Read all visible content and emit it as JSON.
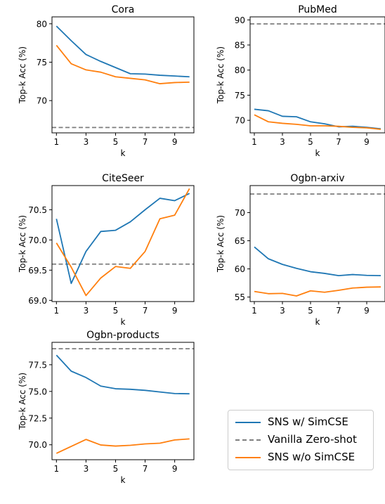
{
  "chart_data": [
    {
      "type": "line",
      "title": "Cora",
      "xlabel": "k",
      "ylabel": "Top-k Acc (%)",
      "x": [
        1,
        2,
        3,
        4,
        5,
        6,
        7,
        8,
        9,
        10
      ],
      "xlim": [
        0.7,
        10.3
      ],
      "ylim": [
        65.8,
        80.9
      ],
      "xticks": [
        1,
        3,
        5,
        7,
        9
      ],
      "yticks": [
        70,
        75,
        80
      ],
      "ytick_labels": [
        "70",
        "75",
        "80"
      ],
      "series": [
        {
          "name": "SNS w/ SimCSE",
          "values": [
            79.7,
            77.8,
            76.0,
            75.1,
            74.3,
            73.5,
            73.45,
            73.3,
            73.2,
            73.1
          ]
        },
        {
          "name": "SNS w/o SimCSE",
          "values": [
            77.2,
            74.8,
            74.0,
            73.7,
            73.1,
            72.9,
            72.7,
            72.2,
            72.35,
            72.4
          ]
        }
      ],
      "reference": {
        "name": "Vanilla Zero-shot",
        "value": 66.5
      }
    },
    {
      "type": "line",
      "title": "PubMed",
      "xlabel": "k",
      "ylabel": "Top-k Acc (%)",
      "x": [
        1,
        2,
        3,
        4,
        5,
        6,
        7,
        8,
        9,
        10
      ],
      "xlim": [
        0.7,
        10.3
      ],
      "ylim": [
        67.5,
        90.6
      ],
      "xticks": [
        1,
        3,
        5,
        7,
        9
      ],
      "yticks": [
        70,
        75,
        80,
        85,
        90
      ],
      "ytick_labels": [
        "70",
        "75",
        "80",
        "85",
        "90"
      ],
      "series": [
        {
          "name": "SNS w/ SimCSE",
          "values": [
            72.2,
            71.9,
            70.8,
            70.7,
            69.7,
            69.3,
            68.7,
            68.8,
            68.6,
            68.3
          ]
        },
        {
          "name": "SNS w/o SimCSE",
          "values": [
            71.1,
            69.7,
            69.4,
            69.2,
            68.9,
            68.9,
            68.8,
            68.6,
            68.5,
            68.2
          ]
        }
      ],
      "reference": {
        "name": "Vanilla Zero-shot",
        "value": 89.2
      }
    },
    {
      "type": "line",
      "title": "CiteSeer",
      "xlabel": "k",
      "ylabel": "Top-k Acc (%)",
      "x": [
        1,
        2,
        3,
        4,
        5,
        6,
        7,
        8,
        9,
        10
      ],
      "xlim": [
        0.7,
        10.3
      ],
      "ylim": [
        68.98,
        70.9
      ],
      "xticks": [
        1,
        3,
        5,
        7,
        9
      ],
      "yticks": [
        69.0,
        69.5,
        70.0,
        70.5
      ],
      "ytick_labels": [
        "69.0",
        "69.5",
        "70.0",
        "70.5"
      ],
      "series": [
        {
          "name": "SNS w/ SimCSE",
          "values": [
            70.35,
            69.28,
            69.81,
            70.14,
            70.16,
            70.3,
            70.5,
            70.69,
            70.65,
            70.77
          ]
        },
        {
          "name": "SNS w/o SimCSE",
          "values": [
            69.95,
            69.55,
            69.08,
            69.37,
            69.56,
            69.53,
            69.81,
            70.35,
            70.41,
            70.85
          ]
        }
      ],
      "reference": {
        "name": "Vanilla Zero-shot",
        "value": 69.6
      }
    },
    {
      "type": "line",
      "title": "Ogbn-arxiv",
      "xlabel": "k",
      "ylabel": "Top-k Acc (%)",
      "x": [
        1,
        2,
        3,
        4,
        5,
        6,
        7,
        8,
        9,
        10
      ],
      "xlim": [
        0.7,
        10.3
      ],
      "ylim": [
        54.2,
        74.8
      ],
      "xticks": [
        1,
        3,
        5,
        7,
        9
      ],
      "yticks": [
        55,
        60,
        65,
        70
      ],
      "ytick_labels": [
        "55",
        "60",
        "65",
        "70"
      ],
      "series": [
        {
          "name": "SNS w/ SimCSE",
          "values": [
            63.9,
            61.8,
            60.8,
            60.1,
            59.5,
            59.2,
            58.8,
            59.0,
            58.85,
            58.8
          ]
        },
        {
          "name": "SNS w/o SimCSE",
          "values": [
            56.0,
            55.6,
            55.65,
            55.2,
            56.1,
            55.85,
            56.2,
            56.6,
            56.75,
            56.8
          ]
        }
      ],
      "reference": {
        "name": "Vanilla Zero-shot",
        "value": 73.3
      }
    },
    {
      "type": "line",
      "title": "Ogbn-products",
      "xlabel": "k",
      "ylabel": "Top-k Acc (%)",
      "x": [
        1,
        2,
        3,
        4,
        5,
        6,
        7,
        8,
        9,
        10
      ],
      "xlim": [
        0.7,
        10.3
      ],
      "ylim": [
        68.6,
        79.6
      ],
      "xticks": [
        1,
        3,
        5,
        7,
        9
      ],
      "yticks": [
        70.0,
        72.5,
        75.0,
        77.5
      ],
      "ytick_labels": [
        "70.0",
        "72.5",
        "75.0",
        "77.5"
      ],
      "series": [
        {
          "name": "SNS w/ SimCSE",
          "values": [
            78.4,
            76.9,
            76.3,
            75.5,
            75.25,
            75.2,
            75.1,
            74.95,
            74.8,
            74.78
          ]
        },
        {
          "name": "SNS w/o SimCSE",
          "values": [
            69.2,
            69.85,
            70.5,
            69.98,
            69.88,
            69.95,
            70.08,
            70.15,
            70.45,
            70.55
          ]
        }
      ],
      "reference": {
        "name": "Vanilla Zero-shot",
        "value": 79.0
      }
    }
  ],
  "legend": {
    "items": [
      {
        "label": "SNS w/ SimCSE",
        "color": "#1f77b4",
        "style": "solid"
      },
      {
        "label": "Vanilla Zero-shot",
        "color": "#7f7f7f",
        "style": "dashed"
      },
      {
        "label": "SNS w/o SimCSE",
        "color": "#ff7f0e",
        "style": "solid"
      }
    ]
  },
  "colors": {
    "sns_with": "#1f77b4",
    "sns_without": "#ff7f0e",
    "vanilla": "#7f7f7f"
  }
}
